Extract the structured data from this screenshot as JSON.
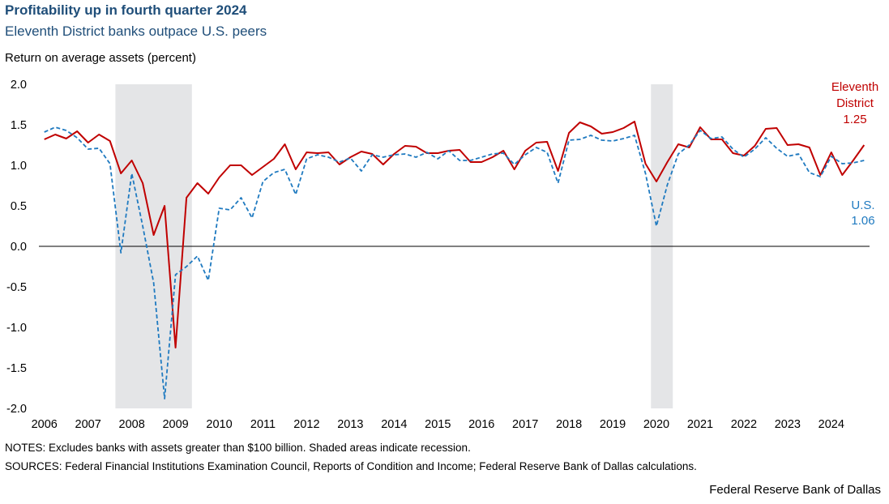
{
  "header": {
    "title": "Profitability up in fourth quarter 2024",
    "subtitle": "Eleventh District banks outpace U.S. peers",
    "ylabel": "Return on average assets (percent)"
  },
  "footer": {
    "notes": "NOTES: Excludes banks with assets greater than $100 billion. Shaded areas indicate recession.",
    "sources": "SOURCES: Federal Financial Institutions  Examination Council, Reports of Condition and Income;  Federal Reserve Bank of Dallas calculations.",
    "credit": "Federal Reserve Bank of Dallas"
  },
  "colors": {
    "eleventh": "#c00000",
    "us": "#1f7ac0",
    "recession": "#e4e5e7",
    "zero_line": "#000000"
  },
  "chart_data": {
    "type": "line",
    "title": "Profitability up in fourth quarter 2024",
    "subtitle": "Eleventh District banks outpace U.S. peers",
    "ylabel": "Return on average assets (percent)",
    "xlabel": "",
    "ylim": [
      -2.0,
      2.0
    ],
    "yticks": [
      "2.0",
      "1.5",
      "1.0",
      "0.5",
      "0.0",
      "-0.5",
      "-1.0",
      "-1.5",
      "-2.0"
    ],
    "xticks": [
      "2006",
      "2007",
      "2008",
      "2009",
      "2010",
      "2011",
      "2012",
      "2013",
      "2014",
      "2015",
      "2016",
      "2017",
      "2018",
      "2019",
      "2020",
      "2021",
      "2022",
      "2023",
      "2024"
    ],
    "x_start": "2006Q1",
    "x_end": "2024Q4",
    "frequency": "quarterly",
    "grid": false,
    "recessions": [
      {
        "start": "2007Q4",
        "end": "2009Q2"
      },
      {
        "start": "2020Q1",
        "end": "2020Q2"
      }
    ],
    "series": [
      {
        "name": "Eleventh District",
        "end_label": [
          "Eleventh",
          "District",
          "1.25"
        ],
        "style": "solid",
        "values": [
          1.32,
          1.38,
          1.33,
          1.42,
          1.28,
          1.38,
          1.3,
          0.9,
          1.06,
          0.78,
          0.14,
          0.5,
          -1.25,
          0.6,
          0.78,
          0.65,
          0.85,
          1.0,
          1.0,
          0.88,
          0.98,
          1.08,
          1.26,
          0.95,
          1.16,
          1.15,
          1.16,
          1.01,
          1.1,
          1.17,
          1.14,
          1.01,
          1.14,
          1.24,
          1.23,
          1.15,
          1.15,
          1.18,
          1.19,
          1.04,
          1.04,
          1.1,
          1.18,
          0.95,
          1.18,
          1.28,
          1.29,
          0.93,
          1.4,
          1.53,
          1.48,
          1.39,
          1.41,
          1.46,
          1.54,
          1.02,
          0.8,
          1.04,
          1.26,
          1.22,
          1.47,
          1.32,
          1.32,
          1.15,
          1.12,
          1.24,
          1.45,
          1.46,
          1.25,
          1.26,
          1.22,
          0.88,
          1.16,
          0.88,
          1.06,
          1.25
        ]
      },
      {
        "name": "U.S.",
        "end_label": [
          "U.S.",
          "1.06"
        ],
        "style": "dashed",
        "values": [
          1.41,
          1.47,
          1.43,
          1.34,
          1.2,
          1.21,
          1.02,
          -0.08,
          0.9,
          0.25,
          -0.45,
          -1.88,
          -0.35,
          -0.25,
          -0.12,
          -0.42,
          0.47,
          0.45,
          0.6,
          0.35,
          0.8,
          0.91,
          0.95,
          0.64,
          1.08,
          1.13,
          1.1,
          1.04,
          1.09,
          0.93,
          1.13,
          1.1,
          1.13,
          1.14,
          1.1,
          1.16,
          1.08,
          1.18,
          1.06,
          1.06,
          1.1,
          1.14,
          1.15,
          1.01,
          1.13,
          1.22,
          1.16,
          0.78,
          1.31,
          1.32,
          1.37,
          1.31,
          1.3,
          1.33,
          1.37,
          0.9,
          0.25,
          0.76,
          1.14,
          1.25,
          1.43,
          1.33,
          1.35,
          1.2,
          1.1,
          1.2,
          1.34,
          1.21,
          1.11,
          1.14,
          0.91,
          0.86,
          1.11,
          1.02,
          1.03,
          1.06
        ]
      }
    ]
  }
}
